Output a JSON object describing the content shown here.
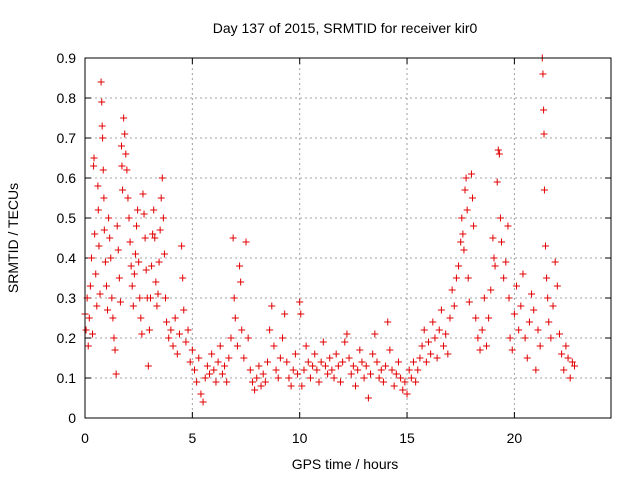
{
  "chart_data": {
    "type": "scatter",
    "title": "Day 137 of 2015, SRMTID for receiver kir0",
    "xlabel": "GPS time / hours",
    "ylabel": "SRMTID / TECUs",
    "xlim": [
      0,
      24.5
    ],
    "ylim": [
      0,
      0.9
    ],
    "xticks": [
      0,
      5,
      10,
      15,
      20
    ],
    "yticks": [
      0,
      0.1,
      0.2,
      0.3,
      0.4,
      0.5,
      0.6,
      0.7,
      0.8,
      0.9
    ],
    "xtick_labels": [
      "0",
      "5",
      "10",
      "15",
      "20"
    ],
    "ytick_labels": [
      "0",
      "0.1",
      "0.2",
      "0.3",
      "0.4",
      "0.5",
      "0.6",
      "0.7",
      "0.8",
      "0.9"
    ],
    "grid": true,
    "marker": "+",
    "color": "#e00000",
    "series": [
      {
        "name": "SRMTID",
        "points": [
          [
            0.0,
            0.26
          ],
          [
            0.05,
            0.22
          ],
          [
            0.1,
            0.3
          ],
          [
            0.15,
            0.18
          ],
          [
            0.2,
            0.25
          ],
          [
            0.25,
            0.33
          ],
          [
            0.3,
            0.4
          ],
          [
            0.35,
            0.21
          ],
          [
            0.4,
            0.63
          ],
          [
            0.42,
            0.65
          ],
          [
            0.45,
            0.46
          ],
          [
            0.5,
            0.36
          ],
          [
            0.55,
            0.28
          ],
          [
            0.6,
            0.58
          ],
          [
            0.62,
            0.52
          ],
          [
            0.65,
            0.43
          ],
          [
            0.7,
            0.31
          ],
          [
            0.75,
            0.84
          ],
          [
            0.78,
            0.79
          ],
          [
            0.8,
            0.73
          ],
          [
            0.82,
            0.7
          ],
          [
            0.85,
            0.62
          ],
          [
            0.88,
            0.55
          ],
          [
            0.9,
            0.47
          ],
          [
            0.95,
            0.39
          ],
          [
            1.0,
            0.33
          ],
          [
            1.05,
            0.27
          ],
          [
            1.1,
            0.5
          ],
          [
            1.15,
            0.45
          ],
          [
            1.2,
            0.4
          ],
          [
            1.25,
            0.3
          ],
          [
            1.3,
            0.25
          ],
          [
            1.35,
            0.2
          ],
          [
            1.4,
            0.17
          ],
          [
            1.45,
            0.11
          ],
          [
            1.5,
            0.48
          ],
          [
            1.55,
            0.42
          ],
          [
            1.6,
            0.35
          ],
          [
            1.65,
            0.29
          ],
          [
            1.7,
            0.68
          ],
          [
            1.72,
            0.63
          ],
          [
            1.75,
            0.57
          ],
          [
            1.8,
            0.75
          ],
          [
            1.85,
            0.71
          ],
          [
            1.9,
            0.66
          ],
          [
            1.95,
            0.62
          ],
          [
            2.0,
            0.55
          ],
          [
            2.05,
            0.5
          ],
          [
            2.1,
            0.44
          ],
          [
            2.15,
            0.38
          ],
          [
            2.2,
            0.33
          ],
          [
            2.25,
            0.28
          ],
          [
            2.3,
            0.36
          ],
          [
            2.35,
            0.41
          ],
          [
            2.4,
            0.48
          ],
          [
            2.45,
            0.52
          ],
          [
            2.5,
            0.39
          ],
          [
            2.55,
            0.3
          ],
          [
            2.6,
            0.25
          ],
          [
            2.65,
            0.21
          ],
          [
            2.7,
            0.56
          ],
          [
            2.75,
            0.51
          ],
          [
            2.8,
            0.45
          ],
          [
            2.85,
            0.37
          ],
          [
            2.9,
            0.3
          ],
          [
            2.95,
            0.13
          ],
          [
            3.0,
            0.22
          ],
          [
            3.05,
            0.3
          ],
          [
            3.1,
            0.38
          ],
          [
            3.15,
            0.46
          ],
          [
            3.2,
            0.52
          ],
          [
            3.25,
            0.45
          ],
          [
            3.3,
            0.34
          ],
          [
            3.35,
            0.28
          ],
          [
            3.4,
            0.31
          ],
          [
            3.45,
            0.39
          ],
          [
            3.5,
            0.47
          ],
          [
            3.55,
            0.55
          ],
          [
            3.6,
            0.6
          ],
          [
            3.65,
            0.5
          ],
          [
            3.7,
            0.41
          ],
          [
            3.75,
            0.3
          ],
          [
            3.8,
            0.24
          ],
          [
            3.9,
            0.2
          ],
          [
            4.0,
            0.22
          ],
          [
            4.1,
            0.18
          ],
          [
            4.2,
            0.25
          ],
          [
            4.3,
            0.16
          ],
          [
            4.4,
            0.21
          ],
          [
            4.5,
            0.43
          ],
          [
            4.55,
            0.35
          ],
          [
            4.6,
            0.27
          ],
          [
            4.7,
            0.19
          ],
          [
            4.8,
            0.22
          ],
          [
            4.9,
            0.14
          ],
          [
            5.0,
            0.17
          ],
          [
            5.1,
            0.12
          ],
          [
            5.2,
            0.09
          ],
          [
            5.3,
            0.15
          ],
          [
            5.4,
            0.06
          ],
          [
            5.5,
            0.04
          ],
          [
            5.6,
            0.1
          ],
          [
            5.7,
            0.13
          ],
          [
            5.8,
            0.11
          ],
          [
            5.9,
            0.16
          ],
          [
            6.0,
            0.12
          ],
          [
            6.1,
            0.09
          ],
          [
            6.2,
            0.14
          ],
          [
            6.3,
            0.18
          ],
          [
            6.4,
            0.11
          ],
          [
            6.5,
            0.13
          ],
          [
            6.6,
            0.09
          ],
          [
            6.7,
            0.15
          ],
          [
            6.8,
            0.2
          ],
          [
            6.9,
            0.45
          ],
          [
            6.95,
            0.3
          ],
          [
            7.0,
            0.25
          ],
          [
            7.1,
            0.18
          ],
          [
            7.2,
            0.38
          ],
          [
            7.25,
            0.34
          ],
          [
            7.3,
            0.22
          ],
          [
            7.4,
            0.15
          ],
          [
            7.5,
            0.44
          ],
          [
            7.6,
            0.2
          ],
          [
            7.7,
            0.12
          ],
          [
            7.8,
            0.09
          ],
          [
            7.9,
            0.07
          ],
          [
            8.0,
            0.1
          ],
          [
            8.1,
            0.13
          ],
          [
            8.2,
            0.08
          ],
          [
            8.3,
            0.11
          ],
          [
            8.4,
            0.09
          ],
          [
            8.5,
            0.14
          ],
          [
            8.6,
            0.22
          ],
          [
            8.7,
            0.28
          ],
          [
            8.8,
            0.18
          ],
          [
            8.9,
            0.12
          ],
          [
            9.0,
            0.1
          ],
          [
            9.1,
            0.15
          ],
          [
            9.2,
            0.2
          ],
          [
            9.3,
            0.26
          ],
          [
            9.4,
            0.14
          ],
          [
            9.5,
            0.1
          ],
          [
            9.6,
            0.08
          ],
          [
            9.7,
            0.12
          ],
          [
            9.8,
            0.16
          ],
          [
            9.9,
            0.11
          ],
          [
            10.0,
            0.29
          ],
          [
            10.05,
            0.26
          ],
          [
            10.1,
            0.08
          ],
          [
            10.2,
            0.12
          ],
          [
            10.3,
            0.18
          ],
          [
            10.4,
            0.14
          ],
          [
            10.5,
            0.1
          ],
          [
            10.6,
            0.13
          ],
          [
            10.7,
            0.16
          ],
          [
            10.8,
            0.12
          ],
          [
            10.9,
            0.09
          ],
          [
            11.0,
            0.14
          ],
          [
            11.1,
            0.19
          ],
          [
            11.2,
            0.13
          ],
          [
            11.3,
            0.11
          ],
          [
            11.4,
            0.15
          ],
          [
            11.5,
            0.12
          ],
          [
            11.6,
            0.1
          ],
          [
            11.7,
            0.16
          ],
          [
            11.8,
            0.13
          ],
          [
            11.9,
            0.09
          ],
          [
            12.0,
            0.14
          ],
          [
            12.1,
            0.19
          ],
          [
            12.2,
            0.21
          ],
          [
            12.3,
            0.15
          ],
          [
            12.4,
            0.11
          ],
          [
            12.5,
            0.13
          ],
          [
            12.6,
            0.08
          ],
          [
            12.7,
            0.12
          ],
          [
            12.8,
            0.17
          ],
          [
            12.9,
            0.14
          ],
          [
            13.0,
            0.1
          ],
          [
            13.1,
            0.13
          ],
          [
            13.2,
            0.05
          ],
          [
            13.3,
            0.11
          ],
          [
            13.4,
            0.16
          ],
          [
            13.5,
            0.21
          ],
          [
            13.6,
            0.14
          ],
          [
            13.7,
            0.1
          ],
          [
            13.8,
            0.12
          ],
          [
            13.9,
            0.09
          ],
          [
            14.0,
            0.13
          ],
          [
            14.1,
            0.24
          ],
          [
            14.2,
            0.17
          ],
          [
            14.3,
            0.12
          ],
          [
            14.4,
            0.08
          ],
          [
            14.5,
            0.11
          ],
          [
            14.6,
            0.14
          ],
          [
            14.7,
            0.1
          ],
          [
            14.8,
            0.07
          ],
          [
            14.9,
            0.09
          ],
          [
            15.0,
            0.06
          ],
          [
            15.1,
            0.12
          ],
          [
            15.2,
            0.1
          ],
          [
            15.3,
            0.14
          ],
          [
            15.4,
            0.09
          ],
          [
            15.5,
            0.12
          ],
          [
            15.6,
            0.15
          ],
          [
            15.7,
            0.18
          ],
          [
            15.8,
            0.22
          ],
          [
            15.9,
            0.14
          ],
          [
            16.0,
            0.19
          ],
          [
            16.1,
            0.16
          ],
          [
            16.2,
            0.24
          ],
          [
            16.3,
            0.2
          ],
          [
            16.4,
            0.15
          ],
          [
            16.5,
            0.22
          ],
          [
            16.6,
            0.27
          ],
          [
            16.7,
            0.18
          ],
          [
            16.8,
            0.21
          ],
          [
            16.9,
            0.16
          ],
          [
            17.0,
            0.25
          ],
          [
            17.1,
            0.32
          ],
          [
            17.2,
            0.28
          ],
          [
            17.3,
            0.35
          ],
          [
            17.4,
            0.38
          ],
          [
            17.5,
            0.44
          ],
          [
            17.55,
            0.5
          ],
          [
            17.6,
            0.46
          ],
          [
            17.65,
            0.42
          ],
          [
            17.7,
            0.57
          ],
          [
            17.75,
            0.6
          ],
          [
            17.8,
            0.52
          ],
          [
            17.85,
            0.35
          ],
          [
            17.9,
            0.29
          ],
          [
            18.0,
            0.61
          ],
          [
            18.05,
            0.55
          ],
          [
            18.1,
            0.48
          ],
          [
            18.2,
            0.25
          ],
          [
            18.3,
            0.2
          ],
          [
            18.4,
            0.17
          ],
          [
            18.5,
            0.22
          ],
          [
            18.6,
            0.3
          ],
          [
            18.7,
            0.18
          ],
          [
            18.8,
            0.25
          ],
          [
            18.9,
            0.32
          ],
          [
            19.0,
            0.45
          ],
          [
            19.05,
            0.4
          ],
          [
            19.1,
            0.38
          ],
          [
            19.2,
            0.59
          ],
          [
            19.25,
            0.67
          ],
          [
            19.3,
            0.66
          ],
          [
            19.35,
            0.5
          ],
          [
            19.4,
            0.44
          ],
          [
            19.5,
            0.35
          ],
          [
            19.6,
            0.39
          ],
          [
            19.7,
            0.48
          ],
          [
            19.75,
            0.3
          ],
          [
            19.8,
            0.2
          ],
          [
            19.9,
            0.17
          ],
          [
            20.0,
            0.26
          ],
          [
            20.1,
            0.33
          ],
          [
            20.2,
            0.22
          ],
          [
            20.3,
            0.28
          ],
          [
            20.4,
            0.36
          ],
          [
            20.5,
            0.2
          ],
          [
            20.6,
            0.15
          ],
          [
            20.7,
            0.24
          ],
          [
            20.8,
            0.31
          ],
          [
            20.9,
            0.27
          ],
          [
            21.0,
            0.12
          ],
          [
            21.1,
            0.22
          ],
          [
            21.2,
            0.18
          ],
          [
            21.3,
            0.9
          ],
          [
            21.33,
            0.86
          ],
          [
            21.36,
            0.77
          ],
          [
            21.38,
            0.71
          ],
          [
            21.4,
            0.57
          ],
          [
            21.45,
            0.43
          ],
          [
            21.5,
            0.35
          ],
          [
            21.55,
            0.3
          ],
          [
            21.6,
            0.24
          ],
          [
            21.7,
            0.2
          ],
          [
            21.8,
            0.28
          ],
          [
            21.9,
            0.39
          ],
          [
            22.0,
            0.33
          ],
          [
            22.1,
            0.21
          ],
          [
            22.2,
            0.16
          ],
          [
            22.3,
            0.12
          ],
          [
            22.4,
            0.18
          ],
          [
            22.5,
            0.15
          ],
          [
            22.6,
            0.1
          ],
          [
            22.7,
            0.14
          ],
          [
            22.8,
            0.13
          ]
        ]
      }
    ]
  }
}
